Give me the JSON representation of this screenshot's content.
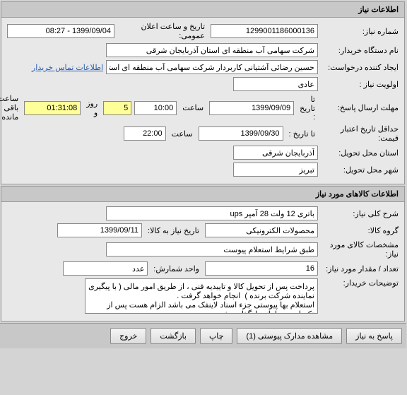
{
  "panel1": {
    "title": "اطلاعات نیاز",
    "need_number_label": "شماره نیاز:",
    "need_number": "1299001186000136",
    "announce_date_label": "تاریخ و ساعت اعلان عمومی:",
    "announce_date": "1399/09/04 - 08:27",
    "buyer_org_label": "نام دستگاه خریدار:",
    "buyer_org": "شرکت سهامی آب منطقه ای استان آذربایجان شرقی",
    "requester_label": "ایجاد کننده درخواست:",
    "requester": "حسین رضائی آشتیانی کاربردار شرکت سهامی آب منطقه ای استان آذربایجان شرقی",
    "buyer_contact_link": "اطلاعات تماس خریدار",
    "priority_label": "اولویت نیاز :",
    "priority": "عادی",
    "deadline_label": "مهلت ارسال پاسخ:",
    "until_label": "تا تاریخ :",
    "deadline_date": "1399/09/09",
    "hour_label": "ساعت",
    "deadline_hour": "10:00",
    "days_remaining": "5",
    "day_label": "روز و",
    "time_remaining": "01:31:08",
    "time_remaining_label": "ساعت باقی مانده",
    "min_validity_label": "حداقل تاریخ اعتبار قیمت:",
    "until_label2": "تا تاریخ :",
    "validity_date": "1399/09/30",
    "validity_hour": "22:00",
    "delivery_province_label": "استان محل تحویل:",
    "delivery_province": "آذربایجان شرقی",
    "delivery_city_label": "شهر محل تحویل:",
    "delivery_city": "تبریز"
  },
  "panel2": {
    "title": "اطلاعات کالاهای مورد نیاز",
    "need_desc_label": "شرح کلی نیاز:",
    "need_desc": "باتری 12 ولت 28 آمپر ups",
    "product_group_label": "گروه کالا:",
    "product_group": "محصولات الکترونیکی",
    "need_date_label": "تاریخ نیاز به کالا:",
    "need_date": "1399/09/11",
    "spec_label": "مشخصات کالای مورد نیاز:",
    "spec": "طبق شرایط استعلام پیوست",
    "qty_label": "تعداد / مقدار مورد نیاز:",
    "qty": "16",
    "unit_label": "واحد شمارش:",
    "unit": "عدد",
    "buyer_notes_label": "توضیحات خریدار:",
    "buyer_notes": "پرداخت پس از تحویل کالا و تاییدیه فنی ، از طریق امور مالی ( با پیگیری نماینده شرکت برنده )  انجام خواهد گرفت .\nاستعلام بها پیوستی جزء اسناد لاینفک می باشد الزام هست پس از تکمیل در سامانه بارگذاری شود."
  },
  "buttons": {
    "respond": "پاسخ به نیاز",
    "view_attachments": "مشاهده مدارک پیوستی (1)",
    "print": "چاپ",
    "back": "بازگشت",
    "exit": "خروج"
  }
}
